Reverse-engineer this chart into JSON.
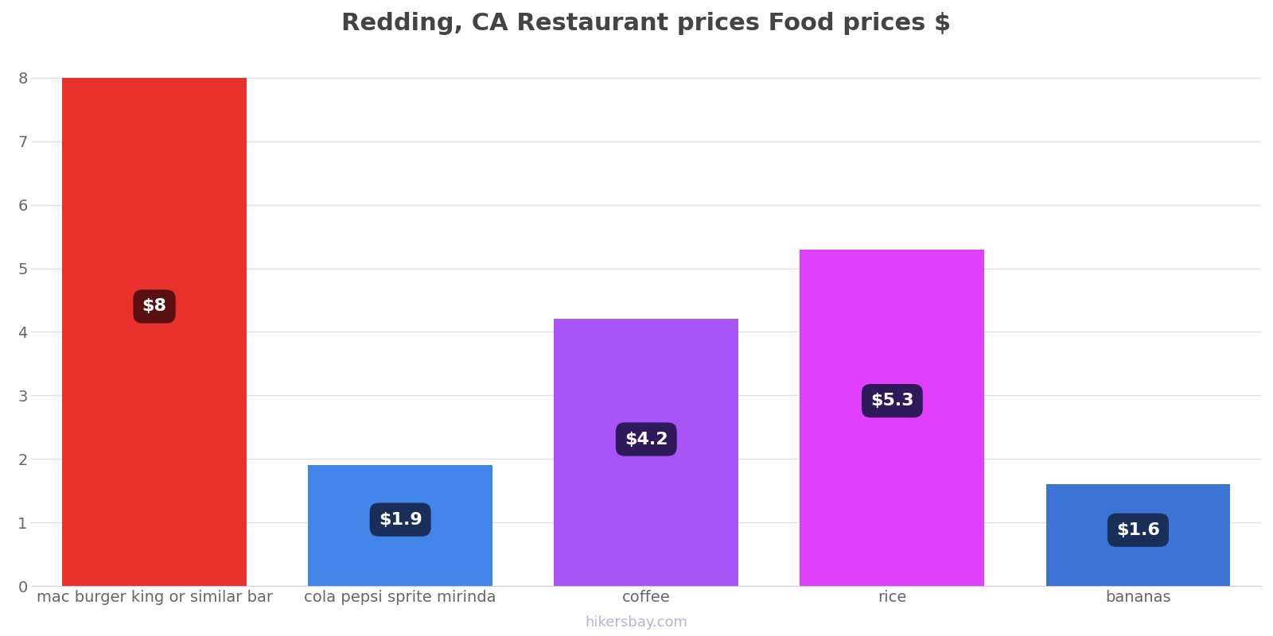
{
  "title": "Redding, CA Restaurant prices Food prices $",
  "categories": [
    "mac burger king or similar bar",
    "cola pepsi sprite mirinda",
    "coffee",
    "rice",
    "bananas"
  ],
  "values": [
    8.0,
    1.9,
    4.2,
    5.3,
    1.6
  ],
  "bar_colors": [
    "#e8312a",
    "#4285e8",
    "#a855f7",
    "#e040fb",
    "#3b74d4"
  ],
  "label_texts": [
    "$8",
    "$1.9",
    "$4.2",
    "$5.3",
    "$1.6"
  ],
  "label_box_colors": [
    "#5a1010",
    "#1a2e5a",
    "#2e1a5a",
    "#2e1a5a",
    "#1a2e5a"
  ],
  "ylim": [
    0,
    8.4
  ],
  "yticks": [
    0,
    1,
    2,
    3,
    4,
    5,
    6,
    7,
    8
  ],
  "watermark": "hikersbay.com",
  "title_fontsize": 22,
  "tick_fontsize": 14,
  "label_fontsize": 16,
  "background_color": "#ffffff",
  "grid_color": "#e0e0e8"
}
